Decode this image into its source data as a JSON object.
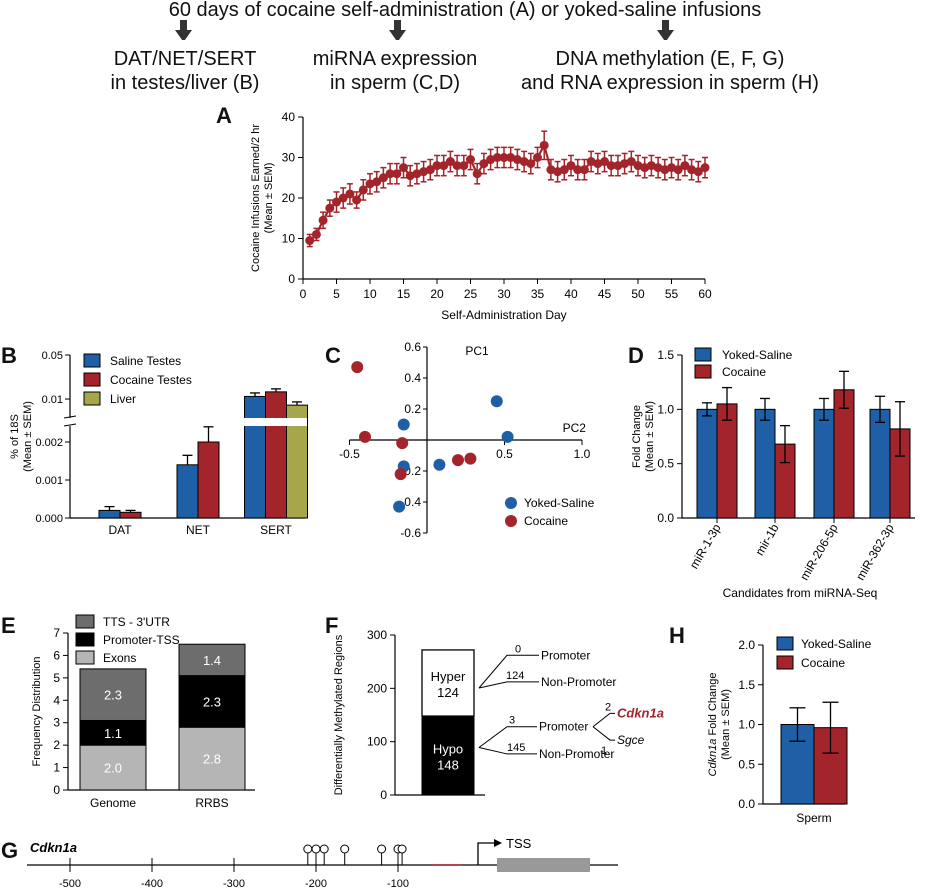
{
  "header": {
    "title": "60 days of cocaine self-administration (A) or yoked-saline infusions",
    "col1": [
      "DAT/NET/SERT",
      "in testes/liver (B)"
    ],
    "col2": [
      "miRNA expression",
      "in sperm (C,D)"
    ],
    "col3": [
      "DNA methylation (E, F, G)",
      "and RNA expression in sperm (H)"
    ]
  },
  "colors": {
    "saline": "#1f5fa6",
    "cocaine": "#a3252b",
    "liver": "#a6a64a",
    "tts": "#6d6d6d",
    "promoter": "#000000",
    "exons": "#b5b5b5"
  },
  "panels": {
    "A": "A",
    "B": "B",
    "C": "C",
    "D": "D",
    "E": "E",
    "F": "F",
    "G": "G",
    "H": "H"
  },
  "chart_data": [
    {
      "panel": "A",
      "type": "line",
      "xlabel": "Self-Administration Day",
      "ylabel": [
        "Cocaine Infusions Earned/2 hr",
        "(Mean ± SEM)"
      ],
      "xlim": [
        0,
        60
      ],
      "ylim": [
        0,
        40
      ],
      "xticks": [
        "0",
        "5",
        "10",
        "15",
        "20",
        "25",
        "30",
        "35",
        "40",
        "45",
        "50",
        "55",
        "60"
      ],
      "yticks": [
        "0",
        "10",
        "20",
        "30",
        "40"
      ],
      "x": [
        1,
        2,
        3,
        4,
        5,
        6,
        7,
        8,
        9,
        10,
        11,
        12,
        13,
        14,
        15,
        16,
        17,
        18,
        19,
        20,
        21,
        22,
        23,
        24,
        25,
        26,
        27,
        28,
        29,
        30,
        31,
        32,
        33,
        34,
        35,
        36,
        37,
        38,
        39,
        40,
        41,
        42,
        43,
        44,
        45,
        46,
        47,
        48,
        49,
        50,
        51,
        52,
        53,
        54,
        55,
        56,
        57,
        58,
        59,
        60
      ],
      "y": [
        9.5,
        11,
        14.5,
        17.5,
        19,
        20,
        21,
        19.5,
        22,
        23.5,
        24,
        25,
        26,
        26,
        27.5,
        25.5,
        26,
        26.5,
        27,
        28,
        28,
        29,
        28,
        28,
        29.5,
        26,
        28.5,
        29.5,
        30,
        30,
        30,
        29.5,
        29,
        28.5,
        30,
        33,
        27,
        26.5,
        27,
        28,
        27,
        27,
        29,
        28.5,
        29,
        28,
        28,
        28.5,
        29,
        28,
        27.5,
        28,
        27.5,
        27,
        27.5,
        27,
        28,
        27,
        26.5,
        27.5
      ],
      "err": [
        1.5,
        1.5,
        2,
        2,
        2.5,
        2.5,
        2.5,
        2,
        2.5,
        2.5,
        2.5,
        2.5,
        2.5,
        2.5,
        2.5,
        2.5,
        2.5,
        2.5,
        2.5,
        2.5,
        2.5,
        2.5,
        2.5,
        2.5,
        2.5,
        2.5,
        2.5,
        2.5,
        2.5,
        2.5,
        2.5,
        2.5,
        2.5,
        2.5,
        2.5,
        3.5,
        2.5,
        2.5,
        2.5,
        2.5,
        2.5,
        2.5,
        2.5,
        2.5,
        2.5,
        2.5,
        2.5,
        2.5,
        2.5,
        2.5,
        2.5,
        2.5,
        2.5,
        2.5,
        2.5,
        2.5,
        2.5,
        2.5,
        2.5,
        2.5
      ]
    },
    {
      "panel": "B",
      "type": "bar",
      "ylabel": [
        "% of 18S",
        "(Mean ± SEM)"
      ],
      "categories": [
        "DAT",
        "NET",
        "SERT"
      ],
      "lower_ylim": [
        0,
        0.0025
      ],
      "upper_ylim": [
        0.005,
        0.05
      ],
      "yticks_lower": [
        "0.000",
        "0.001",
        "0.002"
      ],
      "yticks_upper": [
        "0.01",
        "0.05"
      ],
      "series": [
        {
          "name": "Saline Testes",
          "values": [
            0.0002,
            0.0014,
            0.011
          ],
          "err": [
            0.0001,
            0.00025,
            0.0015
          ]
        },
        {
          "name": "Cocaine Testes",
          "values": [
            0.00015,
            0.002,
            0.013
          ],
          "err": [
            5e-05,
            0.0004,
            0.0015
          ]
        },
        {
          "name": "Liver",
          "values": [
            null,
            null,
            0.008
          ],
          "err": [
            null,
            null,
            0.001
          ]
        }
      ]
    },
    {
      "panel": "C",
      "type": "scatter",
      "x_axis_label": "PC2",
      "y_axis_label": "PC1",
      "xticks": [
        "-0.5",
        "0.5",
        "1.0"
      ],
      "yticks": [
        "0.6",
        "0.4",
        "0.2",
        "-0.2",
        "-0.4",
        "-0.6"
      ],
      "series": [
        {
          "name": "Yoked-Saline",
          "points": [
            [
              -0.15,
              0.1
            ],
            [
              -0.15,
              -0.17
            ],
            [
              -0.18,
              -0.43
            ],
            [
              0.08,
              -0.16
            ],
            [
              0.45,
              0.25
            ],
            [
              0.52,
              0.02
            ]
          ]
        },
        {
          "name": "Cocaine",
          "points": [
            [
              -0.45,
              0.47
            ],
            [
              -0.4,
              0.02
            ],
            [
              -0.16,
              -0.02
            ],
            [
              -0.17,
              -0.22
            ],
            [
              0.2,
              -0.13
            ],
            [
              0.28,
              -0.12
            ]
          ]
        }
      ]
    },
    {
      "panel": "D",
      "type": "bar",
      "xlabel": "Candidates from miRNA-Seq",
      "ylabel": [
        "Fold Change",
        "(Mean ± SEM)"
      ],
      "ylim": [
        0,
        1.5
      ],
      "yticks": [
        "0.0",
        "0.5",
        "1.0",
        "1.5"
      ],
      "categories": [
        "miR-1-3p",
        "mir-1b",
        "miR-206-5p",
        "miR-362-3p"
      ],
      "series": [
        {
          "name": "Yoked-Saline",
          "values": [
            1.0,
            1.0,
            1.0,
            1.0
          ],
          "err": [
            0.06,
            0.1,
            0.1,
            0.12
          ]
        },
        {
          "name": "Cocaine",
          "values": [
            1.05,
            0.68,
            1.18,
            0.82
          ],
          "err": [
            0.15,
            0.17,
            0.17,
            0.25
          ]
        }
      ]
    },
    {
      "panel": "E",
      "type": "bar",
      "ylabel": "Frequency Distribution",
      "ylim": [
        0,
        7
      ],
      "yticks": [
        "0",
        "1",
        "2",
        "3",
        "4",
        "5",
        "6",
        "7"
      ],
      "categories": [
        "Genome",
        "RRBS"
      ],
      "series": [
        {
          "name": "Exons",
          "values": [
            2.0,
            2.8
          ]
        },
        {
          "name": "Promoter-TSS",
          "values": [
            1.1,
            2.3
          ]
        },
        {
          "name": "TTS - 3'UTR",
          "values": [
            2.3,
            1.4
          ]
        }
      ]
    },
    {
      "panel": "F",
      "type": "bar",
      "ylabel": "Differentially Methylated Regions",
      "ylim": [
        0,
        300
      ],
      "yticks": [
        "0",
        "100",
        "200",
        "300"
      ],
      "categories": [
        ""
      ],
      "series": [
        {
          "name": "Hypo",
          "values": [
            148
          ]
        },
        {
          "name": "Hyper",
          "values": [
            124
          ]
        }
      ],
      "annotations": {
        "hyper_label": "Hyper",
        "hyper_count": "124",
        "hypo_label": "Hypo",
        "hypo_count": "148",
        "hyper_promoter_n": "0",
        "hyper_promoter": "Promoter",
        "hyper_nonpromoter_n": "124",
        "hyper_nonpromoter": "Non-Promoter",
        "hypo_promoter_n": "3",
        "hypo_promoter": "Promoter",
        "hypo_nonpromoter_n": "145",
        "hypo_nonpromoter": "Non-Promoter",
        "gene1_n": "2",
        "gene1": "Cdkn1a",
        "gene2_n": "1",
        "gene2": "Sgce"
      }
    },
    {
      "panel": "H",
      "type": "bar",
      "xlabel": "Sperm",
      "ylabel_gene": "Cdkn1a",
      "ylabel_rest": " Fold Change",
      "ylabel2": "(Mean ± SEM)",
      "ylim": [
        0,
        2.0
      ],
      "yticks": [
        "0.0",
        "0.5",
        "1.0",
        "1.5",
        "2.0"
      ],
      "categories": [
        "Sperm"
      ],
      "series": [
        {
          "name": "Yoked-Saline",
          "values": [
            1.0
          ],
          "err": [
            0.21
          ]
        },
        {
          "name": "Cocaine",
          "values": [
            0.96
          ],
          "err": [
            0.32
          ]
        }
      ]
    },
    {
      "panel": "G",
      "type": "scatter",
      "gene_label": "Cdkn1a",
      "tss_label": "TSS",
      "xticks": [
        "-500",
        "-400",
        "-300",
        "-200",
        "-100"
      ],
      "cpg_sites": [
        -210,
        -200,
        -190,
        -165,
        -120,
        -100,
        -95
      ]
    }
  ]
}
